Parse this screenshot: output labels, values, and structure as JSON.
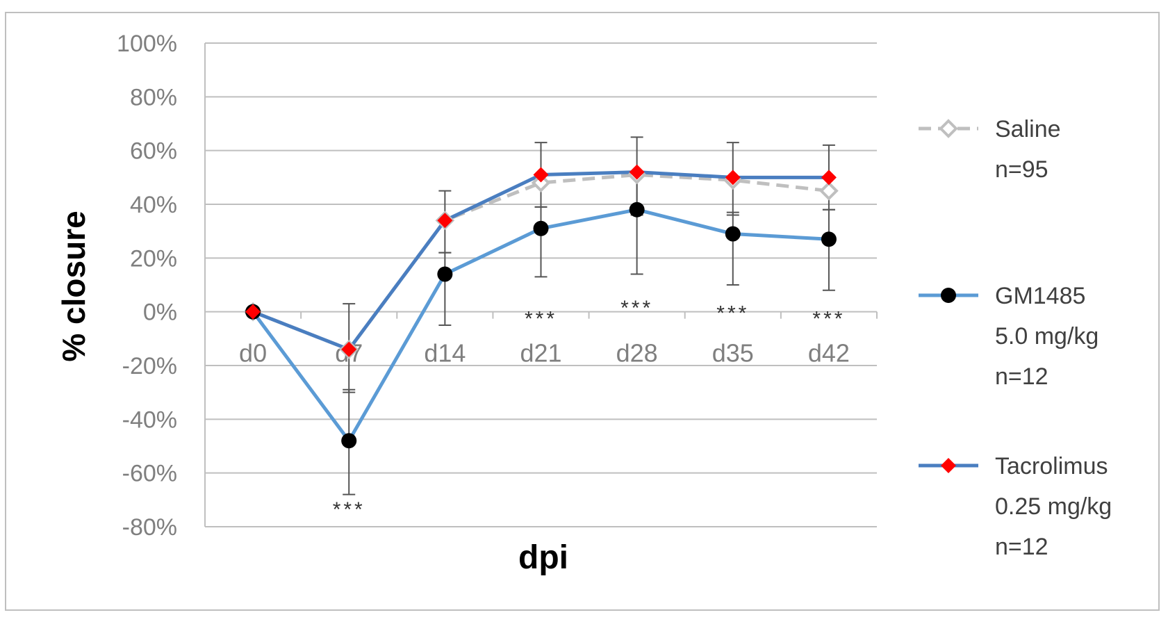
{
  "chart_data": {
    "type": "line",
    "title": "",
    "xlabel": "dpi",
    "ylabel": "% closure",
    "categories": [
      "d0",
      "d7",
      "d14",
      "d21",
      "d28",
      "d35",
      "d42"
    ],
    "ylim": [
      -80,
      100
    ],
    "yticks": [
      100,
      80,
      60,
      40,
      20,
      0,
      -20,
      -40,
      -60,
      -80
    ],
    "ytick_labels": [
      "100%",
      "80%",
      "60%",
      "40%",
      "20%",
      "0%",
      "-20%",
      "-40%",
      "-60%",
      "-80%"
    ],
    "grid": "horizontal",
    "legend_position": "right",
    "series": [
      {
        "name": "Saline",
        "legend_lines": [
          "Saline",
          "n=95"
        ],
        "values": [
          0,
          -14,
          34,
          48,
          51,
          49,
          45
        ],
        "style": "dashed",
        "line_color": "#bfbfbf",
        "marker": "diamond-outline",
        "marker_color": "#bfbfbf"
      },
      {
        "name": "GM1485",
        "legend_lines": [
          "GM1485",
          "5.0 mg/kg",
          "n=12"
        ],
        "values": [
          0,
          -48,
          14,
          31,
          38,
          29,
          27
        ],
        "error_low": [
          0,
          -68,
          -5,
          13,
          14,
          10,
          8
        ],
        "error_high": [
          0,
          -29,
          22,
          39,
          52,
          37,
          38
        ],
        "style": "solid",
        "line_color": "#5b9bd5",
        "marker": "circle",
        "marker_color": "#000000"
      },
      {
        "name": "Tacrolimus",
        "legend_lines": [
          "Tacrolimus",
          "0.25 mg/kg",
          "n=12"
        ],
        "values": [
          0,
          -14,
          34,
          51,
          52,
          50,
          50
        ],
        "error_low": [
          0,
          -30,
          22,
          39,
          36,
          36,
          38
        ],
        "error_high": [
          0,
          3,
          45,
          63,
          65,
          63,
          62
        ],
        "style": "solid",
        "line_color": "#4a7ec0",
        "marker": "diamond",
        "marker_color": "#ff0000"
      }
    ],
    "annotations": [
      {
        "text": "***",
        "category": "d7",
        "y": -73
      },
      {
        "text": "***",
        "category": "d21",
        "y": -2
      },
      {
        "text": "***",
        "category": "d28",
        "y": 2
      },
      {
        "text": "***",
        "category": "d35",
        "y": 0
      },
      {
        "text": "***",
        "category": "d42",
        "y": -2
      }
    ]
  }
}
